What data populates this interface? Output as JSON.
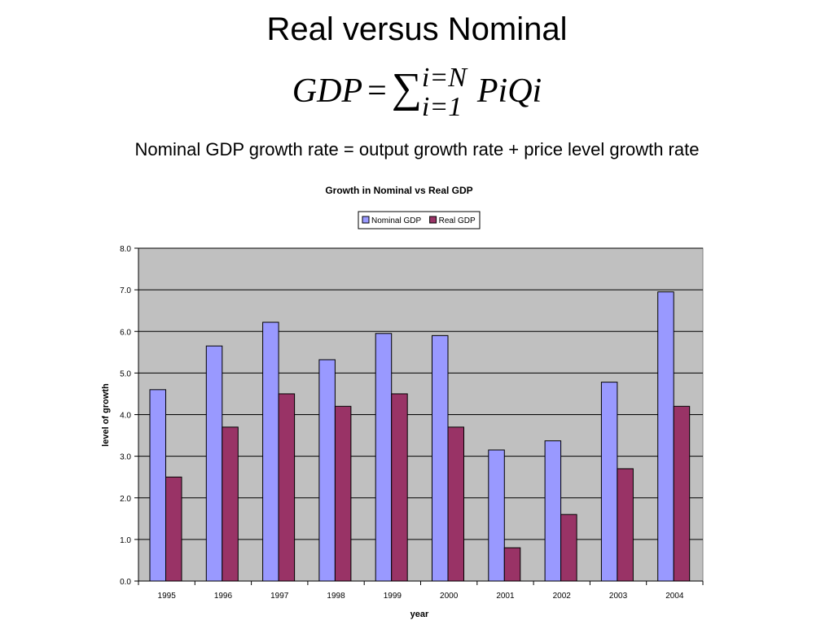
{
  "slide": {
    "title": "Real versus Nominal",
    "formula": {
      "lhs": "GDP",
      "equals": "=",
      "sum": "∑",
      "upper": "i=N",
      "lower": "i=1",
      "term": "PiQi"
    },
    "subtitle": "Nominal GDP growth rate = output growth rate + price level growth rate"
  },
  "chart_data": {
    "type": "bar",
    "title": "Growth in Nominal vs Real GDP",
    "xlabel": "year",
    "ylabel": "level of growth",
    "ylim": [
      0,
      8
    ],
    "yticks": [
      "0.0",
      "1.0",
      "2.0",
      "3.0",
      "4.0",
      "5.0",
      "6.0",
      "7.0",
      "8.0"
    ],
    "grid": true,
    "legend": "top-center",
    "categories": [
      "1995",
      "1996",
      "1997",
      "1998",
      "1999",
      "2000",
      "2001",
      "2002",
      "2003",
      "2004"
    ],
    "series": [
      {
        "name": "Nominal GDP",
        "color": "#9999ff",
        "values": [
          4.6,
          5.65,
          6.22,
          5.32,
          5.95,
          5.9,
          3.15,
          3.37,
          4.78,
          6.95
        ]
      },
      {
        "name": "Real GDP",
        "color": "#993366",
        "values": [
          2.5,
          3.7,
          4.5,
          4.2,
          4.5,
          3.7,
          0.8,
          1.6,
          2.7,
          4.2
        ]
      }
    ],
    "colors": {
      "plot_bg": "#c0c0c0",
      "grid": "#000000"
    }
  }
}
